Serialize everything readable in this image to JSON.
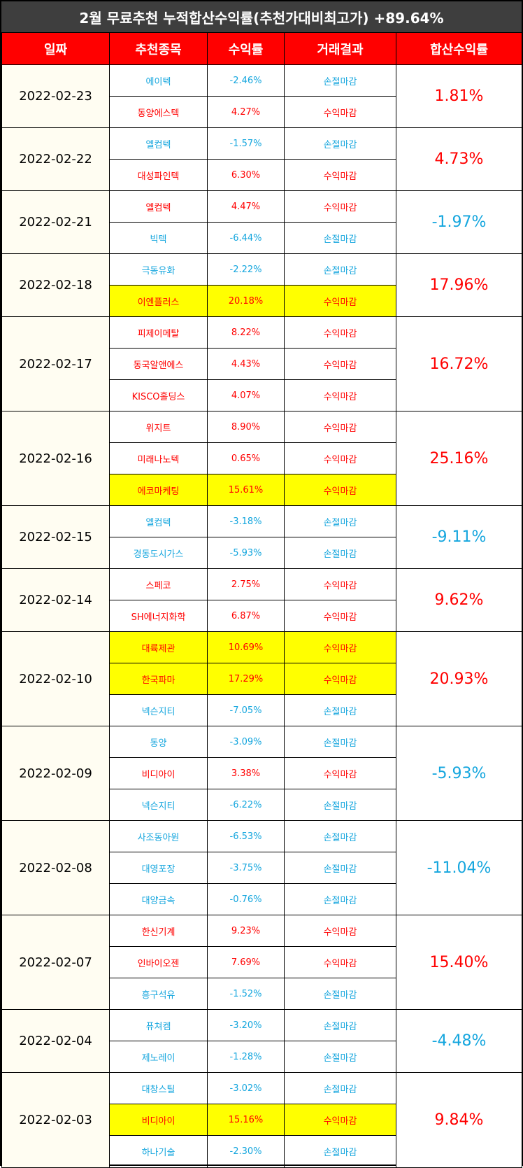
{
  "title": "2월 무료추천 누적합산수익률(추천가대비최고가) +89.64%",
  "columns": [
    "일짜",
    "추천종목",
    "수익률",
    "거래결과",
    "합산수익률"
  ],
  "colors": {
    "profit": "#ff0000",
    "loss": "#15a6de",
    "highlight": "#ffff00",
    "header": "#ff0000",
    "title_bar": "#3e3e3e"
  },
  "groups": [
    {
      "date": "2022-02-23",
      "combined": "1.81%",
      "dir": "up",
      "rows": [
        {
          "stock": "에이텍",
          "ret": "-2.46%",
          "result": "손절마감",
          "dir": "down",
          "hl": false
        },
        {
          "stock": "동양에스텍",
          "ret": "4.27%",
          "result": "수익마감",
          "dir": "up",
          "hl": false
        }
      ]
    },
    {
      "date": "2022-02-22",
      "combined": "4.73%",
      "dir": "up",
      "rows": [
        {
          "stock": "엘컴텍",
          "ret": "-1.57%",
          "result": "손절마감",
          "dir": "down",
          "hl": false
        },
        {
          "stock": "대성파인텍",
          "ret": "6.30%",
          "result": "수익마감",
          "dir": "up",
          "hl": false
        }
      ]
    },
    {
      "date": "2022-02-21",
      "combined": "-1.97%",
      "dir": "down",
      "rows": [
        {
          "stock": "엘컴텍",
          "ret": "4.47%",
          "result": "수익마감",
          "dir": "up",
          "hl": false
        },
        {
          "stock": "빅텍",
          "ret": "-6.44%",
          "result": "손절마감",
          "dir": "down",
          "hl": false
        }
      ]
    },
    {
      "date": "2022-02-18",
      "combined": "17.96%",
      "dir": "up",
      "rows": [
        {
          "stock": "극동유화",
          "ret": "-2.22%",
          "result": "손절마감",
          "dir": "down",
          "hl": false
        },
        {
          "stock": "이엔플러스",
          "ret": "20.18%",
          "result": "수익마감",
          "dir": "up",
          "hl": true
        }
      ]
    },
    {
      "date": "2022-02-17",
      "combined": "16.72%",
      "dir": "up",
      "rows": [
        {
          "stock": "피제이메탈",
          "ret": "8.22%",
          "result": "수익마감",
          "dir": "up",
          "hl": false
        },
        {
          "stock": "동국알앤에스",
          "ret": "4.43%",
          "result": "수익마감",
          "dir": "up",
          "hl": false
        },
        {
          "stock": "KISCO홀딩스",
          "ret": "4.07%",
          "result": "수익마감",
          "dir": "up",
          "hl": false
        }
      ]
    },
    {
      "date": "2022-02-16",
      "combined": "25.16%",
      "dir": "up",
      "rows": [
        {
          "stock": "위지트",
          "ret": "8.90%",
          "result": "수익마감",
          "dir": "up",
          "hl": false
        },
        {
          "stock": "미래나노텍",
          "ret": "0.65%",
          "result": "수익마감",
          "dir": "up",
          "hl": false
        },
        {
          "stock": "에코마케팅",
          "ret": "15.61%",
          "result": "수익마감",
          "dir": "up",
          "hl": true
        }
      ]
    },
    {
      "date": "2022-02-15",
      "combined": "-9.11%",
      "dir": "down",
      "rows": [
        {
          "stock": "엘컴텍",
          "ret": "-3.18%",
          "result": "손절마감",
          "dir": "down",
          "hl": false
        },
        {
          "stock": "경동도시가스",
          "ret": "-5.93%",
          "result": "손절마감",
          "dir": "down",
          "hl": false
        }
      ]
    },
    {
      "date": "2022-02-14",
      "combined": "9.62%",
      "dir": "up",
      "rows": [
        {
          "stock": "스페코",
          "ret": "2.75%",
          "result": "수익마감",
          "dir": "up",
          "hl": false
        },
        {
          "stock": "SH에너지화학",
          "ret": "6.87%",
          "result": "수익마감",
          "dir": "up",
          "hl": false
        }
      ]
    },
    {
      "date": "2022-02-10",
      "combined": "20.93%",
      "dir": "up",
      "rows": [
        {
          "stock": "대륙제관",
          "ret": "10.69%",
          "result": "수익마감",
          "dir": "up",
          "hl": true
        },
        {
          "stock": "한국파마",
          "ret": "17.29%",
          "result": "수익마감",
          "dir": "up",
          "hl": true
        },
        {
          "stock": "넥슨지티",
          "ret": "-7.05%",
          "result": "손절마감",
          "dir": "down",
          "hl": false
        }
      ]
    },
    {
      "date": "2022-02-09",
      "combined": "-5.93%",
      "dir": "down",
      "rows": [
        {
          "stock": "동양",
          "ret": "-3.09%",
          "result": "손절마감",
          "dir": "down",
          "hl": false
        },
        {
          "stock": "비디아이",
          "ret": "3.38%",
          "result": "수익마감",
          "dir": "up",
          "hl": false
        },
        {
          "stock": "넥슨지티",
          "ret": "-6.22%",
          "result": "손절마감",
          "dir": "down",
          "hl": false
        }
      ]
    },
    {
      "date": "2022-02-08",
      "combined": "-11.04%",
      "dir": "down",
      "rows": [
        {
          "stock": "사조동아원",
          "ret": "-6.53%",
          "result": "손절마감",
          "dir": "down",
          "hl": false
        },
        {
          "stock": "대영포장",
          "ret": "-3.75%",
          "result": "손절마감",
          "dir": "down",
          "hl": false
        },
        {
          "stock": "대양금속",
          "ret": "-0.76%",
          "result": "손절마감",
          "dir": "down",
          "hl": false
        }
      ]
    },
    {
      "date": "2022-02-07",
      "combined": "15.40%",
      "dir": "up",
      "rows": [
        {
          "stock": "한신기계",
          "ret": "9.23%",
          "result": "수익마감",
          "dir": "up",
          "hl": false
        },
        {
          "stock": "인바이오젠",
          "ret": "7.69%",
          "result": "수익마감",
          "dir": "up",
          "hl": false
        },
        {
          "stock": "흥구석유",
          "ret": "-1.52%",
          "result": "손절마감",
          "dir": "down",
          "hl": false
        }
      ]
    },
    {
      "date": "2022-02-04",
      "combined": "-4.48%",
      "dir": "down",
      "rows": [
        {
          "stock": "퓨쳐켐",
          "ret": "-3.20%",
          "result": "손절마감",
          "dir": "down",
          "hl": false
        },
        {
          "stock": "제노레이",
          "ret": "-1.28%",
          "result": "손절마감",
          "dir": "down",
          "hl": false
        }
      ]
    },
    {
      "date": "2022-02-03",
      "combined": "9.84%",
      "dir": "up",
      "rows": [
        {
          "stock": "대창스틸",
          "ret": "-3.02%",
          "result": "손절마감",
          "dir": "down",
          "hl": false
        },
        {
          "stock": "비디아이",
          "ret": "15.16%",
          "result": "수익마감",
          "dir": "up",
          "hl": true
        },
        {
          "stock": "하나기술",
          "ret": "-2.30%",
          "result": "손절마감",
          "dir": "down",
          "hl": false
        }
      ]
    }
  ]
}
